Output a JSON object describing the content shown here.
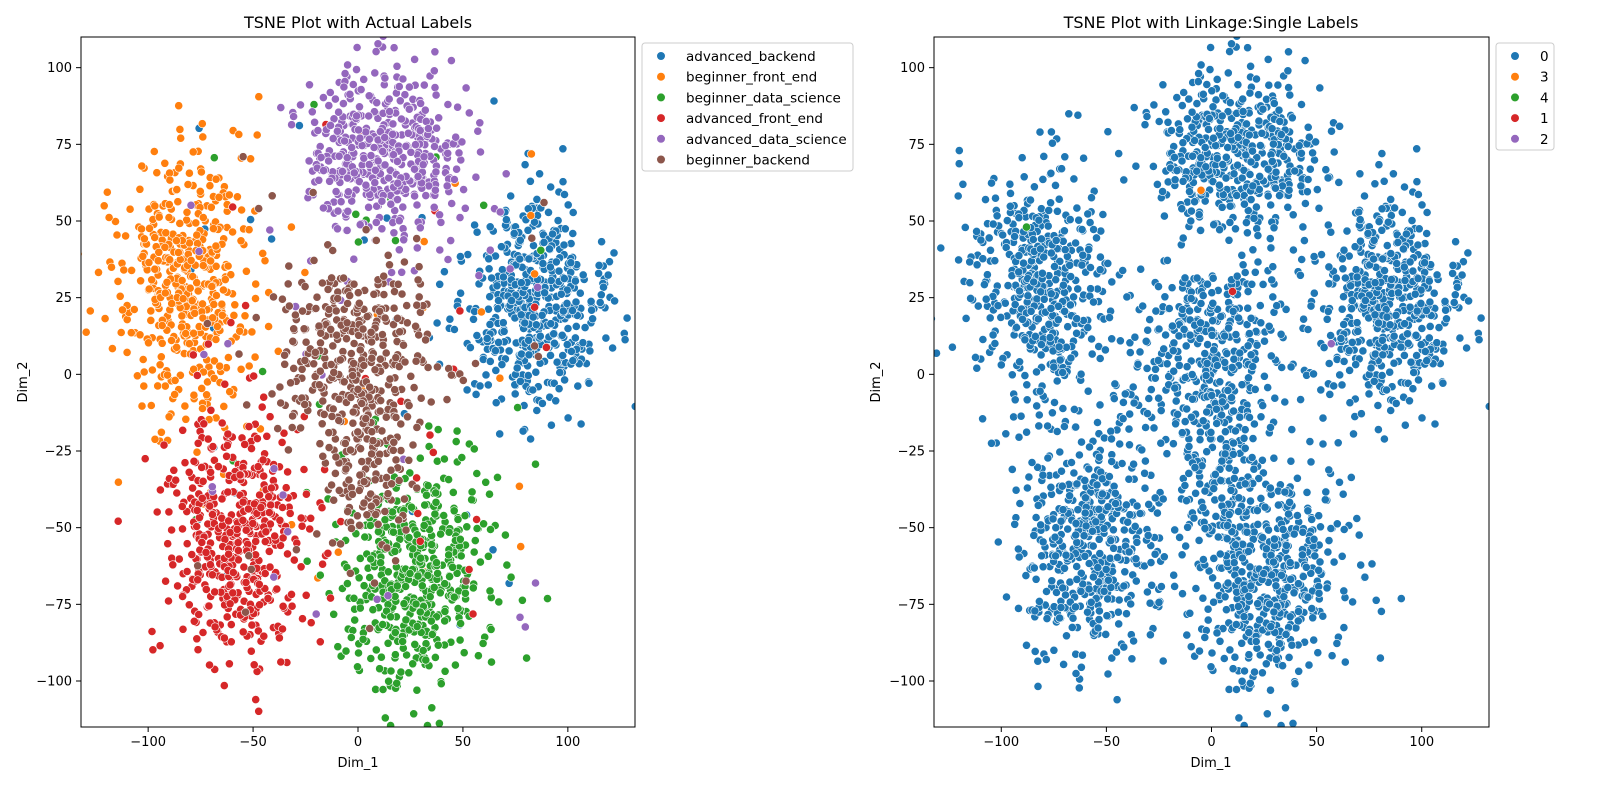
{
  "chart_data": [
    {
      "type": "scatter",
      "title": "TSNE Plot with Actual Labels",
      "xlabel": "Dim_1",
      "ylabel": "Dim_2",
      "xlim": [
        -132,
        132
      ],
      "ylim": [
        -115,
        110
      ],
      "xticks": [
        -100,
        -50,
        0,
        50,
        100
      ],
      "yticks": [
        -100,
        -75,
        -50,
        -25,
        0,
        25,
        50,
        75,
        100
      ],
      "xtick_labels": [
        "−100",
        "−50",
        "0",
        "50",
        "100"
      ],
      "ytick_labels": [
        "−100",
        "−75",
        "−50",
        "−25",
        "0",
        "25",
        "50",
        "75",
        "100"
      ],
      "grid": false,
      "legend_position": "outside-upper-right",
      "series": [
        {
          "name": "advanced_backend",
          "color": "#1f77b4",
          "clusters": [
            {
              "cx": 83,
              "cy": 22,
              "sx": 17,
              "sy": 17,
              "n": 520
            }
          ],
          "stray": 25
        },
        {
          "name": "beginner_front_end",
          "color": "#ff7f0e",
          "clusters": [
            {
              "cx": -82,
              "cy": 28,
              "sx": 17,
              "sy": 22,
              "n": 480
            }
          ],
          "stray": 25
        },
        {
          "name": "beginner_data_science",
          "color": "#2ca02c",
          "clusters": [
            {
              "cx": 28,
              "cy": -65,
              "sx": 18,
              "sy": 19,
              "n": 500
            }
          ],
          "stray": 25
        },
        {
          "name": "advanced_front_end",
          "color": "#d62728",
          "clusters": [
            {
              "cx": -58,
              "cy": -55,
              "sx": 17,
              "sy": 20,
              "n": 500
            }
          ],
          "stray": 25
        },
        {
          "name": "advanced_data_science",
          "color": "#9467bd",
          "clusters": [
            {
              "cx": 12,
              "cy": 72,
              "sx": 19,
              "sy": 14,
              "n": 480
            }
          ],
          "stray": 30
        },
        {
          "name": "beginner_backend",
          "color": "#8c564b",
          "clusters": [
            {
              "cx": 0,
              "cy": 5,
              "sx": 19,
              "sy": 15,
              "n": 380
            },
            {
              "cx": 5,
              "cy": -35,
              "sx": 10,
              "sy": 12,
              "n": 120
            }
          ],
          "stray": 20
        }
      ]
    },
    {
      "type": "scatter",
      "title": "TSNE Plot with Linkage:Single Labels",
      "xlabel": "Dim_1",
      "ylabel": "Dim_2",
      "xlim": [
        -132,
        132
      ],
      "ylim": [
        -115,
        110
      ],
      "xticks": [
        -100,
        -50,
        0,
        50,
        100
      ],
      "yticks": [
        -100,
        -75,
        -50,
        -25,
        0,
        25,
        50,
        75,
        100
      ],
      "xtick_labels": [
        "−100",
        "−50",
        "0",
        "50",
        "100"
      ],
      "ytick_labels": [
        "−100",
        "−75",
        "−50",
        "−25",
        "0",
        "25",
        "50",
        "75",
        "100"
      ],
      "grid": false,
      "legend_position": "outside-upper-right",
      "series": [
        {
          "name": "0",
          "color": "#1f77b4",
          "clusters": [
            {
              "cx": 83,
              "cy": 22,
              "sx": 17,
              "sy": 17,
              "n": 520
            },
            {
              "cx": -82,
              "cy": 28,
              "sx": 17,
              "sy": 22,
              "n": 480
            },
            {
              "cx": 28,
              "cy": -65,
              "sx": 18,
              "sy": 19,
              "n": 500
            },
            {
              "cx": -58,
              "cy": -55,
              "sx": 17,
              "sy": 20,
              "n": 500
            },
            {
              "cx": 12,
              "cy": 72,
              "sx": 19,
              "sy": 14,
              "n": 480
            },
            {
              "cx": 0,
              "cy": 5,
              "sx": 19,
              "sy": 15,
              "n": 380
            },
            {
              "cx": 5,
              "cy": -35,
              "sx": 10,
              "sy": 12,
              "n": 120
            }
          ],
          "stray": 60
        },
        {
          "name": "3",
          "color": "#ff7f0e",
          "points": [
            [
              -5,
              60
            ]
          ]
        },
        {
          "name": "4",
          "color": "#2ca02c",
          "points": [
            [
              -88,
              48
            ]
          ]
        },
        {
          "name": "1",
          "color": "#d62728",
          "points": [
            [
              10,
              27
            ]
          ]
        },
        {
          "name": "2",
          "color": "#9467bd",
          "points": [
            [
              57,
              10
            ]
          ]
        }
      ]
    }
  ]
}
